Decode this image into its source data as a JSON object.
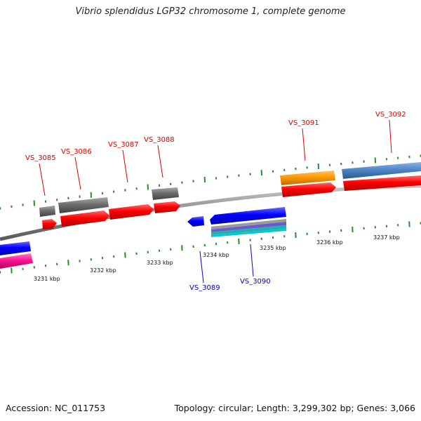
{
  "title": "Vibrio splendidus LGP32 chromosome 1, complete genome",
  "footer": {
    "accession": "Accession: NC_011753",
    "stats": "Topology: circular; Length: 3,299,302 bp; Genes: 3,066"
  },
  "colors": {
    "backbone": "#8c8c8c",
    "tick": "#2e8b2e",
    "label_forward": "#dd0000",
    "label_reverse": "#0000cc",
    "cds_red": "#ff0000",
    "gray_feature": "#707070",
    "orange_feature": "#ff9900",
    "steelblue_feature": "#4f86c6",
    "blue_feature": "#0000ff",
    "pink_feature": "#ff1493",
    "purple_feature": "#6a5acd",
    "teal_feature": "#20b2aa"
  },
  "scale_labels": [
    "3231 kbp",
    "3232 kbp",
    "3233 kbp",
    "3234 kbp",
    "3235 kbp",
    "3236 kbp",
    "3237 kbp"
  ],
  "gene_labels": [
    {
      "text": "VS_3085",
      "strand": "forward"
    },
    {
      "text": "VS_3086",
      "strand": "forward"
    },
    {
      "text": "VS_3087",
      "strand": "forward"
    },
    {
      "text": "VS_3088",
      "strand": "forward"
    },
    {
      "text": "VS_3089",
      "strand": "reverse"
    },
    {
      "text": "VS_3090",
      "strand": "reverse"
    },
    {
      "text": "VS_3091",
      "strand": "forward"
    },
    {
      "text": "VS_3092",
      "strand": "forward"
    }
  ]
}
